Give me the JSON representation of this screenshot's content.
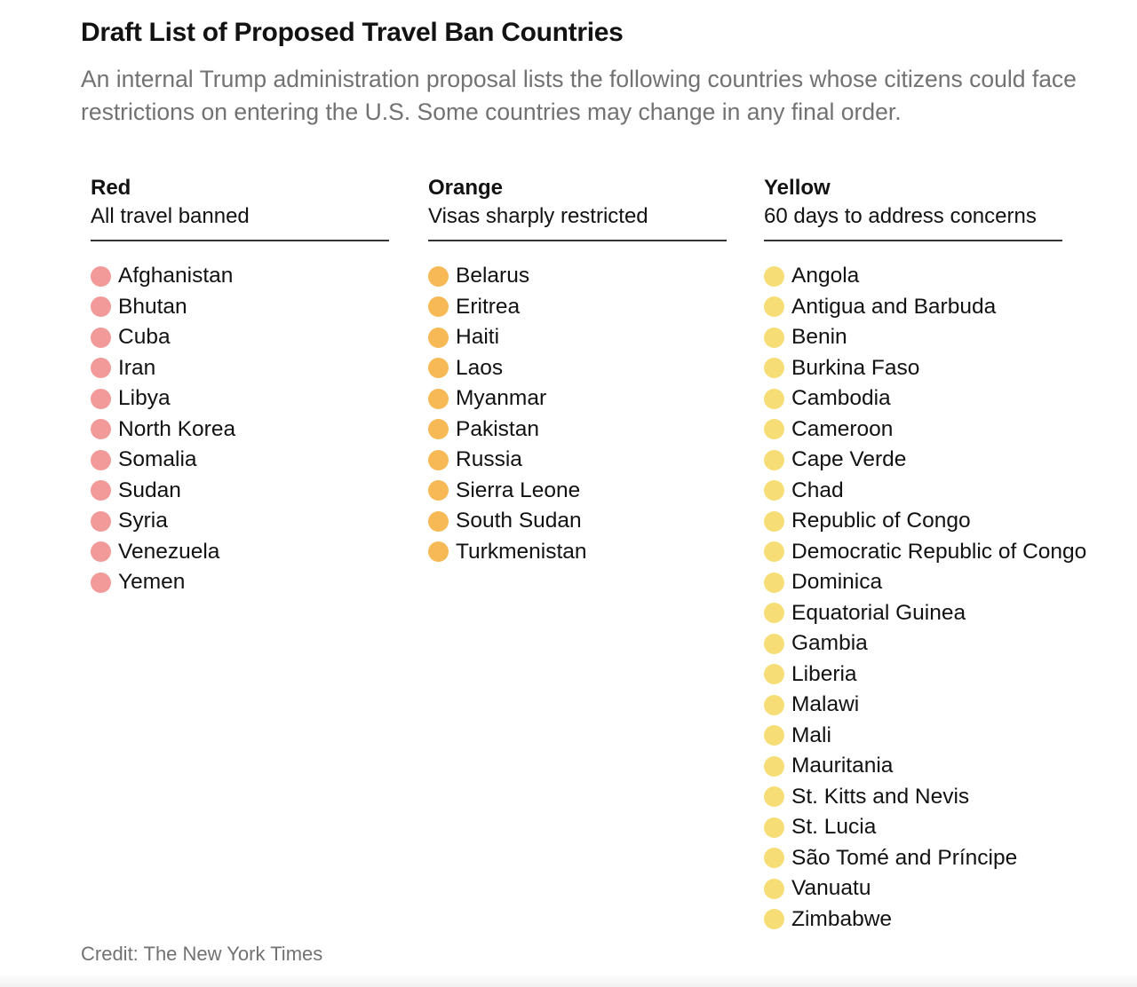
{
  "title": "Draft List of Proposed Travel Ban Countries",
  "subtitle": "An internal Trump administration proposal lists the following countries whose citizens could face restrictions on entering the U.S. Some countries may change in any final order.",
  "credit": "Credit: The New York Times",
  "columns": {
    "red": {
      "name": "Red",
      "description": "All travel banned",
      "color": "#f29a9a",
      "countries": [
        "Afghanistan",
        "Bhutan",
        "Cuba",
        "Iran",
        "Libya",
        "North Korea",
        "Somalia",
        "Sudan",
        "Syria",
        "Venezuela",
        "Yemen"
      ]
    },
    "orange": {
      "name": "Orange",
      "description": "Visas sharply restricted",
      "color": "#f7b955",
      "countries": [
        "Belarus",
        "Eritrea",
        "Haiti",
        "Laos",
        "Myanmar",
        "Pakistan",
        "Russia",
        "Sierra Leone",
        "South Sudan",
        "Turkmenistan"
      ]
    },
    "yellow": {
      "name": "Yellow",
      "description": "60 days to address concerns",
      "color": "#f7dd76",
      "countries": [
        "Angola",
        "Antigua and Barbuda",
        "Benin",
        "Burkina Faso",
        "Cambodia",
        "Cameroon",
        "Cape Verde",
        "Chad",
        "Republic of Congo",
        "Democratic Republic of Congo",
        "Dominica",
        "Equatorial Guinea",
        "Gambia",
        "Liberia",
        "Malawi",
        "Mali",
        "Mauritania",
        "St. Kitts and Nevis",
        "St. Lucia",
        "São Tomé and Príncipe",
        "Vanuatu",
        "Zimbabwe"
      ]
    }
  }
}
